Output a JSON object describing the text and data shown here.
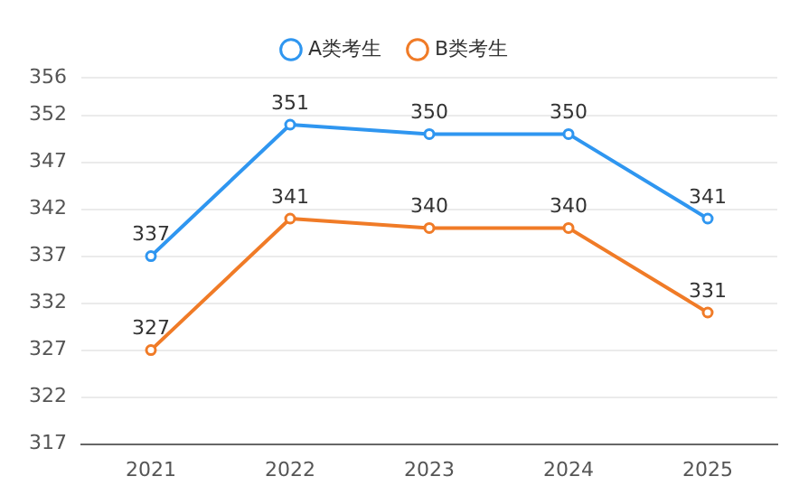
{
  "chart_data": {
    "type": "line",
    "categories": [
      "2021",
      "2022",
      "2023",
      "2024",
      "2025"
    ],
    "series": [
      {
        "name": "A类考生",
        "color": "#2f96f0",
        "values": [
          337,
          351,
          350,
          350,
          341
        ]
      },
      {
        "name": "B类考生",
        "color": "#f07b27",
        "values": [
          327,
          341,
          340,
          340,
          331
        ]
      }
    ],
    "ylim": [
      317,
      356
    ],
    "yticks": [
      317,
      322,
      327,
      332,
      337,
      342,
      347,
      352,
      356
    ],
    "grid": "y",
    "legend": "top",
    "marker": "circle",
    "line_style": "solid",
    "data_labels": true
  }
}
